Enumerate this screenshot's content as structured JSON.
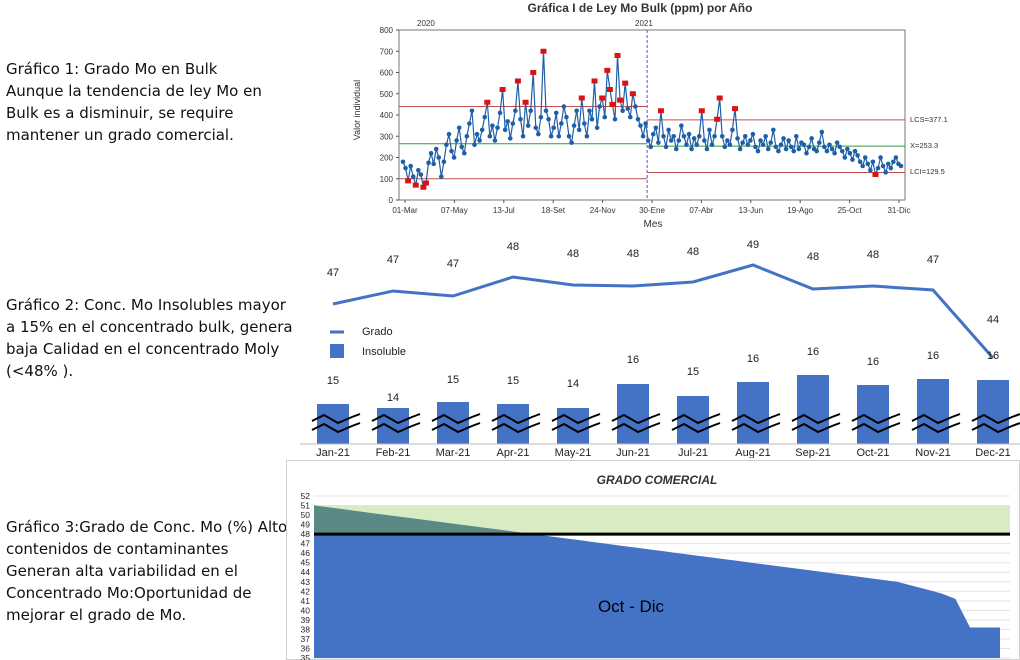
{
  "descriptions": [
    {
      "text": "Gráfico 1: Grado Mo en Bulk\nAunque la  tendencia de ley Mo en Bulk es a disminuir, se require mantener un grado comercial."
    },
    {
      "text": "Gráfico 2: Conc. Mo Insolubles mayor a 15% en el concentrado bulk, genera baja Calidad en el concentrado Moly (<48% )."
    },
    {
      "text": "Gráfico 3:Grado de Conc. Mo (%) Alto contenidos de contaminantes Generan alta variabilidad en el Concentrado Mo:Oportunidad de mejorar el grado de Mo."
    }
  ],
  "chart_data": [
    {
      "type": "line",
      "title": "Gráfica I de Ley Mo Bulk (ppm) por Año",
      "xlabel": "Mes",
      "ylabel": "Valor individual",
      "ylim": [
        0,
        800
      ],
      "yticks": [
        "0",
        "100",
        "200",
        "300",
        "400",
        "500",
        "600",
        "700",
        "800"
      ],
      "xticks": [
        "01-Mar",
        "07-May",
        "13-Jul",
        "18-Set",
        "24-Nov",
        "30-Ene",
        "07-Abr",
        "13-Jun",
        "19-Ago",
        "25-Oct",
        "31-Dic"
      ],
      "stage_labels": [
        "2020",
        "2021"
      ],
      "control_limits": {
        "lcs": "LCS=377.1",
        "mean": "X=253.3",
        "lci": "LCI=129.5"
      },
      "limit_values": {
        "stage1": {
          "lcs": 440,
          "mean": 265,
          "lci": 100
        },
        "stage2": {
          "lcs": 377.1,
          "mean": 253.3,
          "lci": 129.5
        }
      },
      "series": [
        {
          "values": [
            180,
            150,
            90,
            160,
            110,
            70,
            140,
            120,
            60,
            80,
            175,
            220,
            170,
            240,
            200,
            110,
            180,
            260,
            310,
            230,
            200,
            280,
            340,
            250,
            220,
            300,
            360,
            420,
            260,
            310,
            280,
            330,
            390,
            460,
            300,
            350,
            280,
            340,
            410,
            520,
            330,
            370,
            290,
            360,
            420,
            560,
            380,
            300,
            460,
            350,
            420,
            600,
            340,
            310,
            390,
            700,
            420,
            380,
            300,
            340,
            410,
            300,
            360,
            440,
            390,
            300,
            270,
            350,
            420,
            330,
            480,
            360,
            300,
            420,
            380,
            560,
            340,
            440,
            480,
            390,
            610,
            520,
            450,
            380,
            680,
            470,
            420,
            550,
            430,
            390,
            500,
            440,
            380,
            350,
            300,
            360,
            280,
            250,
            310,
            340,
            270,
            420,
            300,
            250,
            330,
            280,
            300,
            240,
            280,
            350,
            300,
            260,
            310,
            240,
            290,
            260,
            300,
            420,
            280,
            240,
            330,
            260,
            300,
            380,
            480,
            300,
            250,
            280,
            260,
            330,
            430,
            290,
            240,
            270,
            300,
            260,
            280,
            310,
            250,
            230,
            280,
            260,
            300,
            240,
            270,
            330,
            250,
            230,
            260,
            290,
            240,
            280,
            250,
            230,
            300,
            240,
            270,
            260,
            220,
            250,
            290,
            240,
            230,
            270,
            320,
            250,
            230,
            260,
            240,
            220,
            270,
            250,
            230,
            200,
            240,
            220,
            190,
            230,
            210,
            180,
            160,
            200,
            170,
            140,
            180,
            120,
            150,
            200,
            160,
            130,
            170,
            150,
            180,
            200,
            170,
            160
          ]
        }
      ],
      "phase_split_index": 96
    },
    {
      "type": "bar",
      "categories": [
        "Jan-21",
        "Feb-21",
        "Mar-21",
        "Apr-21",
        "May-21",
        "Jun-21",
        "Jul-21",
        "Aug-21",
        "Sep-21",
        "Oct-21",
        "Nov-21",
        "Dec-21"
      ],
      "series": [
        {
          "name": "Grado",
          "values": [
            47,
            47,
            47,
            48,
            48,
            48,
            48,
            49,
            48,
            48,
            47,
            44
          ]
        },
        {
          "name": "Insoluble",
          "values": [
            15,
            14,
            15,
            15,
            14,
            16,
            15,
            16,
            16,
            16,
            16,
            16
          ]
        }
      ],
      "colors": {
        "line": "#4472c4",
        "bar": "#4472c4"
      }
    },
    {
      "type": "area",
      "title": "GRADO COMERCIAL",
      "annotation": "Oct - Dic",
      "ylim": [
        35,
        52
      ],
      "yticks": [
        "35",
        "36",
        "37",
        "38",
        "39",
        "40",
        "41",
        "42",
        "43",
        "44",
        "45",
        "46",
        "47",
        "48",
        "49",
        "50",
        "51",
        "52"
      ],
      "threshold": 48,
      "band": [
        48,
        51
      ],
      "values": [
        51,
        50.8,
        50.6,
        50.4,
        50.2,
        50,
        49.8,
        49.6,
        49.4,
        49.2,
        49,
        48.8,
        48.6,
        48.4,
        48.2,
        48,
        47.8,
        47.6,
        47.4,
        47.2,
        47,
        46.8,
        46.6,
        46.4,
        46.2,
        46,
        45.8,
        45.6,
        45.4,
        45.2,
        45,
        44.8,
        44.6,
        44.4,
        44.2,
        44,
        43.8,
        43.6,
        43.4,
        43.2,
        43,
        42.6,
        42.2,
        41.8,
        41.2,
        38.2
      ],
      "colors": {
        "fill": "#4472c4",
        "band": "#d8ecc4",
        "upper": "#5b8a86"
      }
    }
  ]
}
